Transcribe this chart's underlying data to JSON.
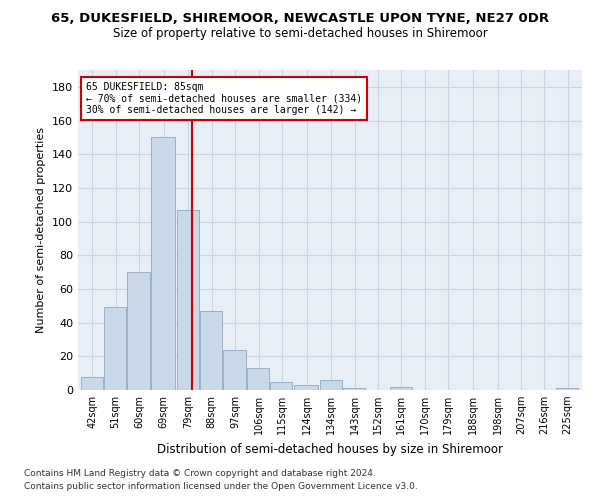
{
  "title": "65, DUKESFIELD, SHIREMOOR, NEWCASTLE UPON TYNE, NE27 0DR",
  "subtitle": "Size of property relative to semi-detached houses in Shiremoor",
  "xlabel": "Distribution of semi-detached houses by size in Shiremoor",
  "ylabel": "Number of semi-detached properties",
  "bar_color": "#c8d8e8",
  "bar_edgecolor": "#9ab0c8",
  "grid_color": "#c8d4e4",
  "background_color": "#e8eef6",
  "property_size": 85,
  "property_line_color": "#cc0000",
  "annotation_box_edgecolor": "#cc0000",
  "annotation_text": "65 DUKESFIELD: 85sqm\n← 70% of semi-detached houses are smaller (334)\n30% of semi-detached houses are larger (142) →",
  "categories": [
    "42sqm",
    "51sqm",
    "60sqm",
    "69sqm",
    "79sqm",
    "88sqm",
    "97sqm",
    "106sqm",
    "115sqm",
    "124sqm",
    "134sqm",
    "143sqm",
    "152sqm",
    "161sqm",
    "170sqm",
    "179sqm",
    "188sqm",
    "198sqm",
    "207sqm",
    "216sqm",
    "225sqm"
  ],
  "bin_edges": [
    42,
    51,
    60,
    69,
    79,
    88,
    97,
    106,
    115,
    124,
    134,
    143,
    152,
    161,
    170,
    179,
    188,
    198,
    207,
    216,
    225
  ],
  "values": [
    8,
    49,
    70,
    150,
    107,
    47,
    24,
    13,
    5,
    3,
    6,
    1,
    0,
    2,
    0,
    0,
    0,
    0,
    0,
    0,
    1
  ],
  "ylim": [
    0,
    190
  ],
  "yticks": [
    0,
    20,
    40,
    60,
    80,
    100,
    120,
    140,
    160,
    180
  ],
  "footnote1": "Contains HM Land Registry data © Crown copyright and database right 2024.",
  "footnote2": "Contains public sector information licensed under the Open Government Licence v3.0."
}
